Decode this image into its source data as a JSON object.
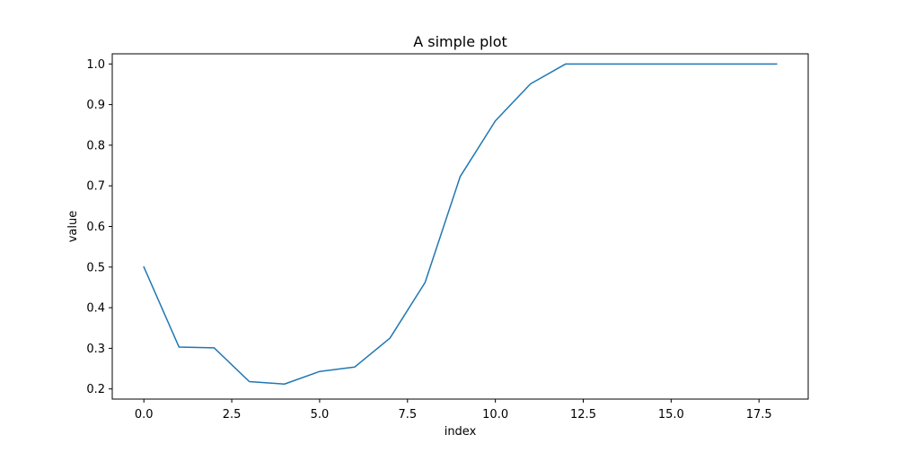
{
  "chart_data": {
    "type": "line",
    "title": "A simple plot",
    "xlabel": "index",
    "ylabel": "value",
    "xlim": [
      -0.9,
      18.9
    ],
    "ylim": [
      0.175,
      1.025
    ],
    "x_ticks": [
      0.0,
      2.5,
      5.0,
      7.5,
      10.0,
      12.5,
      15.0,
      17.5
    ],
    "x_tick_labels": [
      "0.0",
      "2.5",
      "5.0",
      "7.5",
      "10.0",
      "12.5",
      "15.0",
      "17.5"
    ],
    "y_ticks": [
      0.2,
      0.3,
      0.4,
      0.5,
      0.6,
      0.7,
      0.8,
      0.9,
      1.0
    ],
    "y_tick_labels": [
      "0.2",
      "0.3",
      "0.4",
      "0.5",
      "0.6",
      "0.7",
      "0.8",
      "0.9",
      "1.0"
    ],
    "grid": false,
    "colors": {
      "line": "#1f77b4",
      "axes": "#000000"
    },
    "series": [
      {
        "x": [
          0,
          1,
          2,
          3,
          4,
          5,
          6,
          7,
          8,
          9,
          10,
          11,
          12,
          13,
          14,
          15,
          16,
          17,
          18
        ],
        "values": [
          0.5,
          0.303,
          0.301,
          0.218,
          0.212,
          0.243,
          0.254,
          0.325,
          0.462,
          0.723,
          0.86,
          0.951,
          1.0,
          1.0,
          1.0,
          1.0,
          1.0,
          1.0,
          1.0
        ]
      }
    ]
  }
}
